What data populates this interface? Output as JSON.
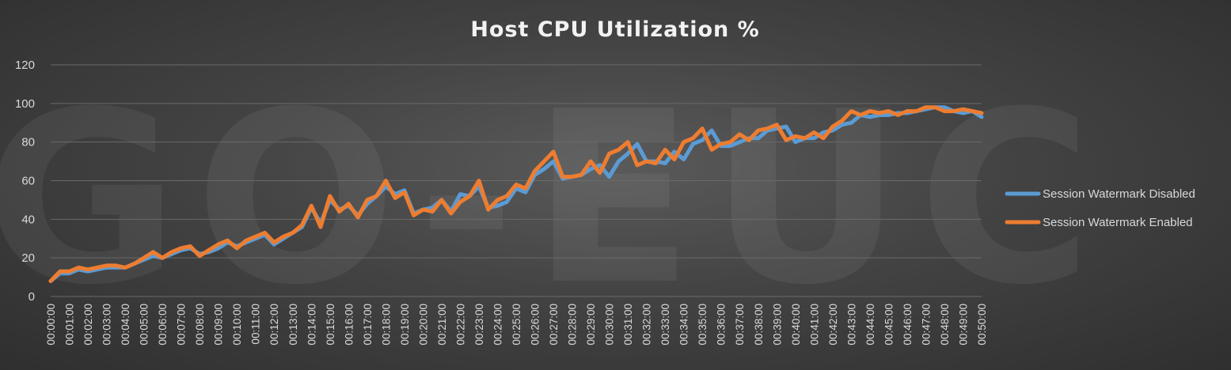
{
  "watermark": "GO-EUC",
  "chart_data": {
    "type": "line",
    "title": "Host CPU Utilization %",
    "xlabel": "",
    "ylabel": "",
    "ylim": [
      0,
      120
    ],
    "yticks": [
      0,
      20,
      40,
      60,
      80,
      100,
      120
    ],
    "grid": true,
    "legend_position": "right",
    "x_tick_labels": [
      "00:00:00",
      "00:01:00",
      "00:02:00",
      "00:03:00",
      "00:04:00",
      "00:05:00",
      "00:06:00",
      "00:07:00",
      "00:08:00",
      "00:09:00",
      "00:10:00",
      "00:11:00",
      "00:12:00",
      "00:13:00",
      "00:14:00",
      "00:15:00",
      "00:16:00",
      "00:17:00",
      "00:18:00",
      "00:19:00",
      "00:20:00",
      "00:21:00",
      "00:22:00",
      "00:23:00",
      "00:24:00",
      "00:25:00",
      "00:26:00",
      "00:27:00",
      "00:28:00",
      "00:29:00",
      "00:30:00",
      "00:31:00",
      "00:32:00",
      "00:33:00",
      "00:34:00",
      "00:35:00",
      "00:36:00",
      "00:37:00",
      "00:38:00",
      "00:39:00",
      "00:40:00",
      "00:41:00",
      "00:42:00",
      "00:43:00",
      "00:44:00",
      "00:45:00",
      "00:46:00",
      "00:47:00",
      "00:48:00",
      "00:49:00",
      "00:50:00"
    ],
    "points_per_tick": 2,
    "series": [
      {
        "name": "Session Watermark Disabled",
        "color": "#5b9bd5",
        "values": [
          8,
          12,
          12,
          14,
          13,
          14,
          15,
          15,
          15,
          17,
          19,
          21,
          20,
          22,
          24,
          25,
          22,
          23,
          25,
          28,
          26,
          28,
          30,
          32,
          27,
          30,
          33,
          36,
          46,
          38,
          50,
          45,
          47,
          42,
          48,
          52,
          57,
          53,
          55,
          43,
          45,
          46,
          50,
          44,
          53,
          52,
          57,
          46,
          47,
          49,
          56,
          54,
          63,
          66,
          70,
          61,
          62,
          63,
          66,
          68,
          62,
          70,
          74,
          79,
          70,
          70,
          69,
          75,
          71,
          79,
          81,
          86,
          78,
          78,
          80,
          82,
          82,
          86,
          87,
          88,
          80,
          82,
          82,
          85,
          86,
          89,
          90,
          94,
          93,
          94,
          94,
          95,
          95,
          96,
          97,
          98,
          98,
          96,
          95,
          96,
          93
        ]
      },
      {
        "name": "Session Watermark Enabled",
        "color": "#ed7d31",
        "values": [
          8,
          13,
          13,
          15,
          14,
          15,
          16,
          16,
          15,
          17,
          20,
          23,
          20,
          23,
          25,
          26,
          21,
          24,
          27,
          29,
          25,
          29,
          31,
          33,
          28,
          31,
          33,
          37,
          47,
          36,
          52,
          44,
          48,
          41,
          50,
          52,
          60,
          51,
          54,
          42,
          45,
          44,
          50,
          43,
          49,
          52,
          60,
          45,
          50,
          52,
          58,
          56,
          65,
          70,
          75,
          62,
          62,
          63,
          70,
          64,
          74,
          76,
          80,
          68,
          70,
          69,
          76,
          71,
          80,
          82,
          87,
          76,
          79,
          80,
          84,
          81,
          86,
          87,
          89,
          81,
          83,
          82,
          85,
          82,
          88,
          91,
          96,
          94,
          96,
          95,
          96,
          94,
          96,
          96,
          98,
          98,
          96,
          96,
          97,
          96,
          95
        ]
      }
    ]
  }
}
